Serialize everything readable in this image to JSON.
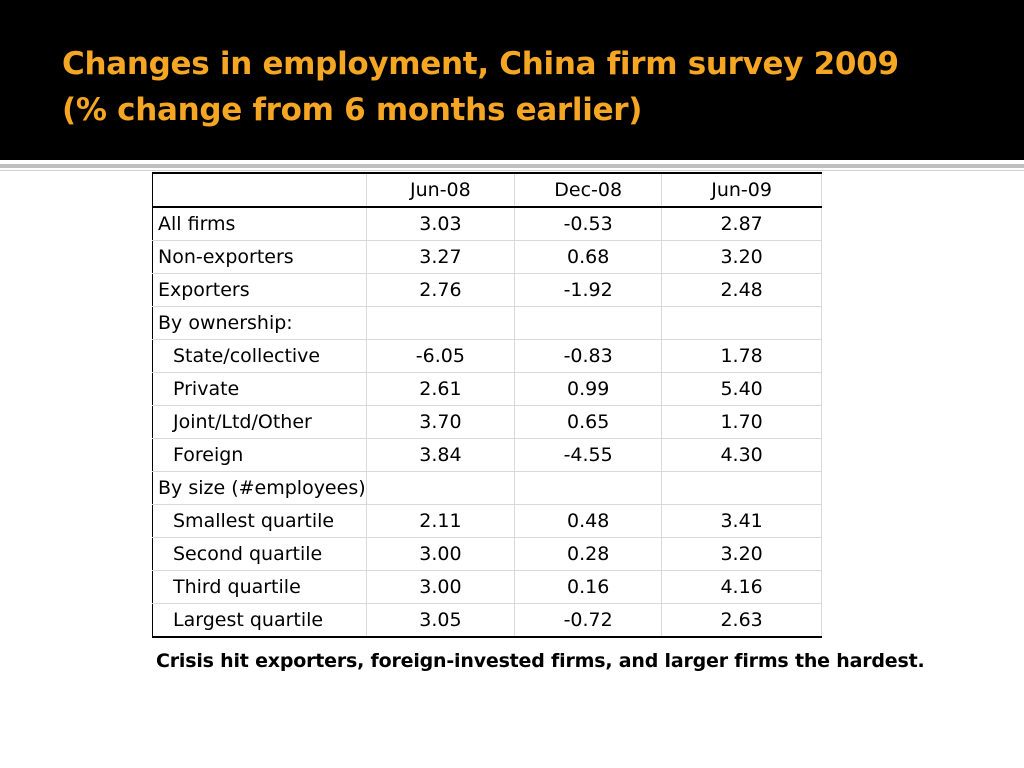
{
  "slide": {
    "title_line1": "Changes in employment, China firm survey 2009",
    "title_line2": "(% change from 6 months earlier)",
    "title_color": "#f5a623",
    "caption": "Crisis hit exporters, foreign-invested firms, and larger firms the hardest."
  },
  "table": {
    "header": [
      "",
      "Jun-08",
      "Dec-08",
      "Jun-09"
    ],
    "rows": [
      {
        "label": "All firms",
        "jun08": "3.03",
        "dec08": "-0.53",
        "jun09": "2.87"
      },
      {
        "label": "Non-exporters",
        "jun08": "3.27",
        "dec08": "0.68",
        "jun09": "3.20"
      },
      {
        "label": "Exporters",
        "jun08": "2.76",
        "dec08": "-1.92",
        "jun09": "2.48"
      },
      {
        "label": "By ownership:",
        "jun08": "",
        "dec08": "",
        "jun09": ""
      },
      {
        "label": "State/collective",
        "jun08": "-6.05",
        "dec08": "-0.83",
        "jun09": "1.78"
      },
      {
        "label": "Private",
        "jun08": "2.61",
        "dec08": "0.99",
        "jun09": "5.40"
      },
      {
        "label": "Joint/Ltd/Other",
        "jun08": "3.70",
        "dec08": "0.65",
        "jun09": "1.70"
      },
      {
        "label": "Foreign",
        "jun08": "3.84",
        "dec08": "-4.55",
        "jun09": "4.30"
      },
      {
        "label": "By size (#employees)",
        "jun08": "",
        "dec08": "",
        "jun09": ""
      },
      {
        "label": "Smallest quartile",
        "jun08": "2.11",
        "dec08": "0.48",
        "jun09": "3.41"
      },
      {
        "label": "Second quartile",
        "jun08": "3.00",
        "dec08": "0.28",
        "jun09": "3.20"
      },
      {
        "label": "Third quartile",
        "jun08": "3.00",
        "dec08": "0.16",
        "jun09": "4.16"
      },
      {
        "label": "Largest quartile",
        "jun08": "3.05",
        "dec08": "-0.72",
        "jun09": "2.63"
      }
    ]
  }
}
